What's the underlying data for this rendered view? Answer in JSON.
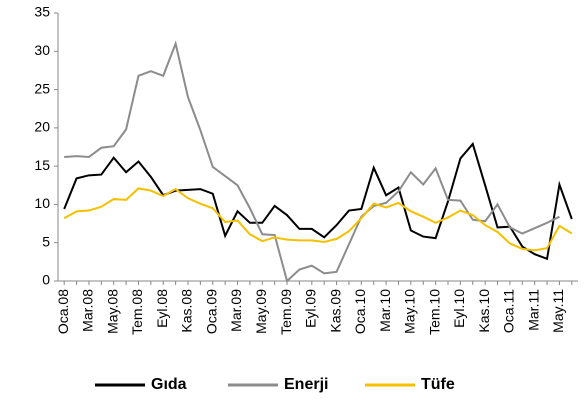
{
  "chart_data": {
    "type": "line",
    "categories": [
      "Oca.08",
      null,
      "Mar.08",
      null,
      "May.08",
      null,
      "Tem.08",
      null,
      "Eyl.08",
      null,
      "Kas.08",
      null,
      "Oca.09",
      null,
      "Mar.09",
      null,
      "May.09",
      null,
      "Tem.09",
      null,
      "Eyl.09",
      null,
      "Kas.09",
      null,
      "Oca.10",
      null,
      "Mar.10",
      null,
      "May.10",
      null,
      "Tem.10",
      null,
      "Eyl.10",
      null,
      "Kas.10",
      null,
      "Oca.11",
      null,
      "Mar.11",
      null,
      "May.11",
      null
    ],
    "series": [
      {
        "name": "Gıda",
        "color": "#000000",
        "values": [
          9.4,
          13.4,
          13.8,
          13.9,
          16.1,
          14.2,
          15.6,
          13.6,
          11.2,
          11.8,
          11.9,
          12.0,
          11.4,
          5.9,
          9.1,
          7.6,
          7.6,
          9.8,
          8.6,
          6.8,
          6.8,
          5.7,
          7.3,
          9.2,
          9.4,
          14.8,
          11.2,
          12.2,
          6.6,
          5.8,
          5.6,
          10.4,
          16.0,
          17.9,
          12.5,
          7.0,
          7.1,
          4.5,
          3.5,
          2.9,
          12.6,
          8.1
        ]
      },
      {
        "name": "Enerji",
        "color": "#8c8c8c",
        "values": [
          16.2,
          16.3,
          16.2,
          17.4,
          17.6,
          19.8,
          26.8,
          27.4,
          26.8,
          31.0,
          24.0,
          19.7,
          14.9,
          13.7,
          12.5,
          9.5,
          6.1,
          6.0,
          0.0,
          1.5,
          2.0,
          1.0,
          1.2,
          4.8,
          8.4,
          9.8,
          10.2,
          11.7,
          14.2,
          12.6,
          14.7,
          10.6,
          10.5,
          8.0,
          7.8,
          10.0,
          7.0,
          6.2,
          6.9,
          7.6,
          8.4,
          null
        ]
      },
      {
        "name": "Tüfe",
        "color": "#f5c000",
        "values": [
          8.2,
          9.1,
          9.2,
          9.7,
          10.7,
          10.6,
          12.1,
          11.8,
          11.1,
          12.0,
          10.8,
          10.1,
          9.5,
          7.7,
          7.9,
          6.1,
          5.2,
          5.7,
          5.4,
          5.3,
          5.3,
          5.1,
          5.5,
          6.5,
          8.2,
          10.1,
          9.6,
          10.2,
          9.1,
          8.4,
          7.6,
          8.3,
          9.2,
          8.6,
          7.3,
          6.4,
          4.9,
          4.2,
          4.0,
          4.3,
          7.2,
          6.2
        ]
      }
    ],
    "ylim": [
      0,
      35
    ],
    "yticks": [
      0,
      5,
      10,
      15,
      20,
      25,
      30,
      35
    ],
    "grid": false,
    "legend": "bottom"
  }
}
